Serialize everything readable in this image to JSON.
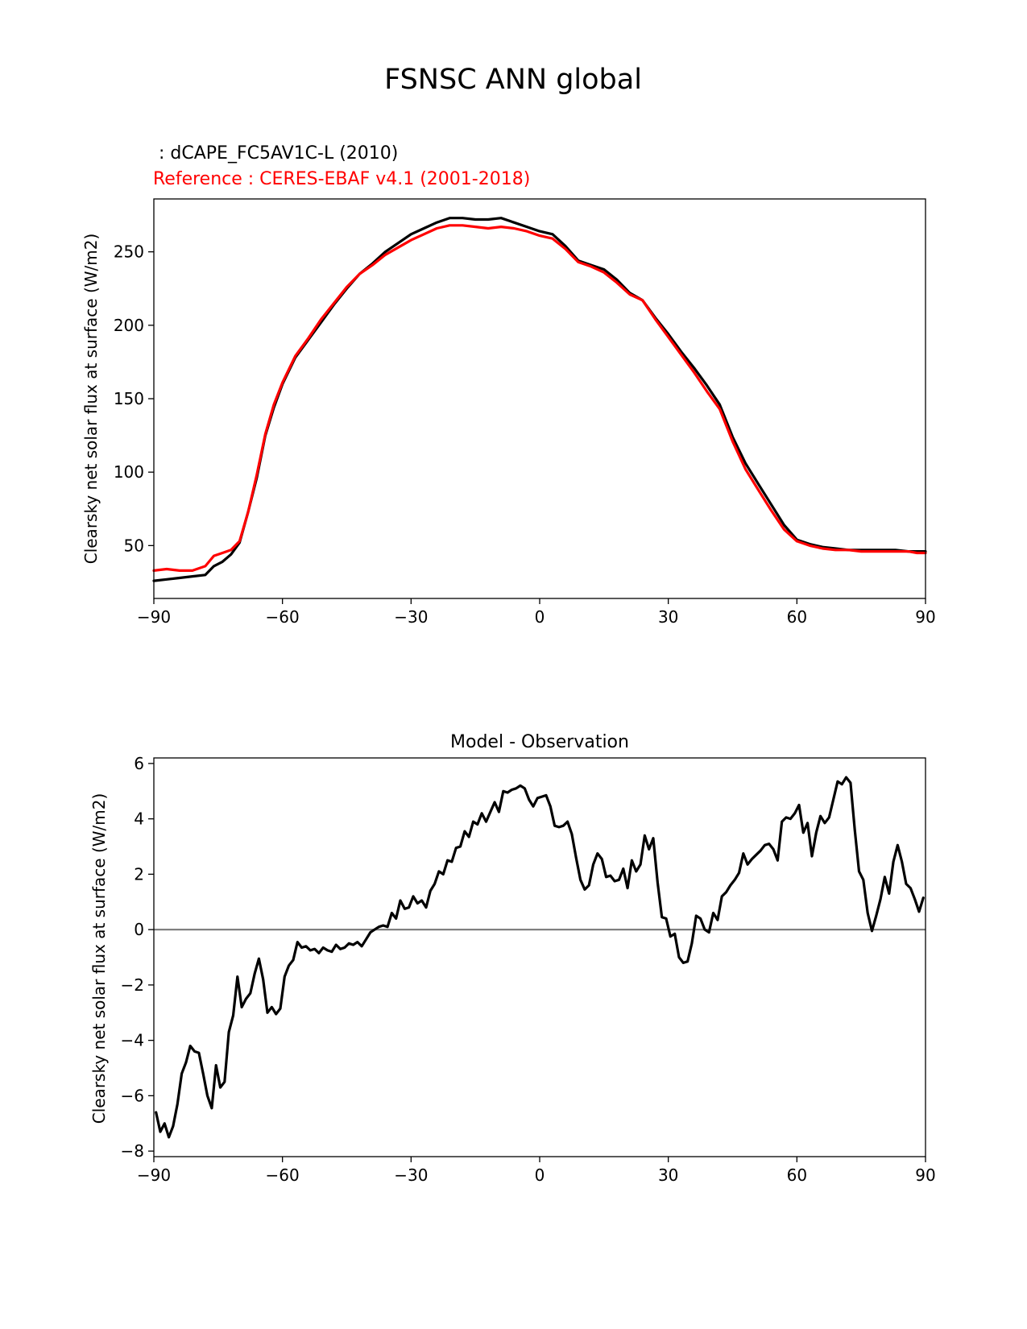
{
  "figure": {
    "title": "FSNSC ANN global"
  },
  "chart_data": [
    {
      "type": "line",
      "title": "",
      "legend_placement": "top-left",
      "test_label": " : dCAPE_FC5AV1C-L (2010)",
      "reference_label": "Reference : CERES-EBAF v4.1 (2001-2018)",
      "xlabel": "",
      "ylabel": "Clearsky net solar flux at surface (W/m2)",
      "xlim": [
        -90,
        90
      ],
      "ylim": [
        14,
        286
      ],
      "xticks": [
        -90,
        -60,
        -30,
        0,
        30,
        60,
        90
      ],
      "xtick_labels": [
        "−90",
        "−60",
        "−30",
        "0",
        "30",
        "60",
        "90"
      ],
      "yticks": [
        50,
        100,
        150,
        200,
        250
      ],
      "ytick_labels": [
        "50",
        "100",
        "150",
        "200",
        "250"
      ],
      "grid": false,
      "series": [
        {
          "color": "#000000",
          "x": [
            -90,
            -87,
            -84,
            -81,
            -78,
            -76,
            -74,
            -72,
            -70,
            -68,
            -66,
            -64,
            -62,
            -60,
            -57,
            -54,
            -51,
            -48,
            -45,
            -42,
            -39,
            -36,
            -33,
            -30,
            -27,
            -24,
            -21,
            -18,
            -15,
            -12,
            -9,
            -6,
            -3,
            0,
            3,
            6,
            9,
            12,
            15,
            18,
            21,
            24,
            27,
            30,
            33,
            36,
            39,
            42,
            45,
            48,
            51,
            54,
            57,
            60,
            63,
            66,
            69,
            72,
            75,
            78,
            80,
            83,
            86,
            88,
            90
          ],
          "y": [
            26,
            27,
            28,
            29,
            30,
            36,
            39,
            44,
            52,
            73,
            96,
            125,
            144,
            160,
            178,
            190,
            202,
            214,
            225,
            235,
            242,
            250,
            256,
            262,
            266,
            270,
            273,
            273,
            272,
            272,
            273,
            270,
            267,
            264,
            262,
            254,
            244,
            241,
            238,
            231,
            222,
            217,
            205,
            194,
            182,
            171,
            159,
            146,
            124,
            106,
            92,
            78,
            64,
            54,
            51,
            49,
            48,
            47,
            47,
            47,
            47,
            47,
            46,
            46,
            46
          ]
        },
        {
          "color": "#ff0000",
          "x": [
            -90,
            -87,
            -84,
            -81,
            -78,
            -76,
            -74,
            -72,
            -70,
            -68,
            -66,
            -64,
            -62,
            -60,
            -57,
            -54,
            -51,
            -48,
            -45,
            -42,
            -39,
            -36,
            -33,
            -30,
            -27,
            -24,
            -21,
            -18,
            -15,
            -12,
            -9,
            -6,
            -3,
            0,
            3,
            6,
            9,
            12,
            15,
            18,
            21,
            24,
            27,
            30,
            33,
            36,
            39,
            42,
            45,
            48,
            51,
            54,
            57,
            60,
            63,
            66,
            69,
            72,
            75,
            78,
            80,
            83,
            86,
            88,
            90
          ],
          "y": [
            33,
            34,
            33,
            33,
            36,
            43,
            45,
            47,
            53,
            73,
            98,
            126,
            146,
            161,
            179,
            191,
            204,
            215,
            226,
            235,
            241,
            248,
            253,
            258,
            262,
            266,
            268,
            268,
            267,
            266,
            267,
            266,
            264,
            261,
            259,
            252,
            243,
            240,
            236,
            229,
            221,
            217,
            204,
            192,
            180,
            168,
            155,
            143,
            121,
            102,
            88,
            74,
            61,
            53,
            50,
            48,
            47,
            47,
            46,
            46,
            46,
            46,
            46,
            45,
            45
          ]
        }
      ]
    },
    {
      "type": "line",
      "title": "Model - Observation",
      "xlabel": "",
      "ylabel": "Clearsky net solar flux at surface (W/m2)",
      "xlim": [
        -90,
        90
      ],
      "ylim": [
        -8.2,
        6.2
      ],
      "xticks": [
        -90,
        -60,
        -30,
        0,
        30,
        60,
        90
      ],
      "xtick_labels": [
        "−90",
        "−60",
        "−30",
        "0",
        "30",
        "60",
        "90"
      ],
      "yticks": [
        -8,
        -6,
        -4,
        -2,
        0,
        2,
        4,
        6
      ],
      "ytick_labels": [
        "−8",
        "−6",
        "−4",
        "−2",
        "0",
        "2",
        "4",
        "6"
      ],
      "grid": false,
      "zero_line_color": "#808080",
      "series": [
        {
          "color": "#000000",
          "x": [
            -89.5,
            -88.5,
            -87.5,
            -86.5,
            -85.5,
            -84.5,
            -83.5,
            -82.5,
            -81.5,
            -80.5,
            -79.5,
            -78.5,
            -77.5,
            -76.5,
            -75.5,
            -74.5,
            -73.5,
            -72.5,
            -71.5,
            -70.5,
            -69.5,
            -68.5,
            -67.5,
            -66.5,
            -65.5,
            -64.5,
            -63.5,
            -62.5,
            -61.5,
            -60.5,
            -59.5,
            -58.5,
            -57.5,
            -56.5,
            -55.5,
            -54.5,
            -53.5,
            -52.5,
            -51.5,
            -50.5,
            -49.5,
            -48.5,
            -47.5,
            -46.5,
            -45.5,
            -44.5,
            -43.5,
            -42.5,
            -41.5,
            -40.5,
            -39.5,
            -38.5,
            -37.5,
            -36.5,
            -35.5,
            -34.5,
            -33.5,
            -32.5,
            -31.5,
            -30.5,
            -29.5,
            -28.5,
            -27.5,
            -26.5,
            -25.5,
            -24.5,
            -23.5,
            -22.5,
            -21.5,
            -20.5,
            -19.5,
            -18.5,
            -17.5,
            -16.5,
            -15.5,
            -14.5,
            -13.5,
            -12.5,
            -11.5,
            -10.5,
            -9.5,
            -8.5,
            -7.5,
            -6.5,
            -5.5,
            -4.5,
            -3.5,
            -2.5,
            -1.5,
            -0.5,
            0.5,
            1.5,
            2.5,
            3.5,
            4.5,
            5.5,
            6.5,
            7.5,
            8.5,
            9.5,
            10.5,
            11.5,
            12.5,
            13.5,
            14.5,
            15.5,
            16.5,
            17.5,
            18.5,
            19.5,
            20.5,
            21.5,
            22.5,
            23.5,
            24.5,
            25.5,
            26.5,
            27.5,
            28.5,
            29.5,
            30.5,
            31.5,
            32.5,
            33.5,
            34.5,
            35.5,
            36.5,
            37.5,
            38.5,
            39.5,
            40.5,
            41.5,
            42.5,
            43.5,
            44.5,
            45.5,
            46.5,
            47.5,
            48.5,
            49.5,
            50.5,
            51.5,
            52.5,
            53.5,
            54.5,
            55.5,
            56.5,
            57.5,
            58.5,
            59.5,
            60.5,
            61.5,
            62.5,
            63.5,
            64.5,
            65.5,
            66.5,
            67.5,
            68.5,
            69.5,
            70.5,
            71.5,
            72.5,
            73.5,
            74.5,
            75.5,
            76.5,
            77.5,
            78.5,
            79.5,
            80.5,
            81.5,
            82.5,
            83.5,
            84.5,
            85.5,
            86.5,
            87.5,
            88.5,
            89.5
          ],
          "y": [
            -6.6,
            -7.3,
            -7.0,
            -7.5,
            -7.1,
            -6.3,
            -5.2,
            -4.8,
            -4.2,
            -4.4,
            -4.45,
            -5.2,
            -6.0,
            -6.45,
            -4.9,
            -5.7,
            -5.5,
            -3.7,
            -3.1,
            -1.7,
            -2.8,
            -2.5,
            -2.3,
            -1.6,
            -1.05,
            -1.8,
            -3.0,
            -2.8,
            -3.05,
            -2.85,
            -1.7,
            -1.3,
            -1.1,
            -0.45,
            -0.65,
            -0.6,
            -0.75,
            -0.7,
            -0.85,
            -0.65,
            -0.75,
            -0.8,
            -0.55,
            -0.7,
            -0.65,
            -0.5,
            -0.55,
            -0.45,
            -0.6,
            -0.35,
            -0.1,
            0.0,
            0.1,
            0.15,
            0.1,
            0.6,
            0.4,
            1.05,
            0.75,
            0.8,
            1.2,
            0.95,
            1.05,
            0.8,
            1.4,
            1.65,
            2.1,
            2.0,
            2.5,
            2.45,
            2.95,
            3.0,
            3.55,
            3.35,
            3.9,
            3.8,
            4.2,
            3.9,
            4.25,
            4.6,
            4.25,
            5.0,
            4.95,
            5.05,
            5.1,
            5.2,
            5.1,
            4.7,
            4.45,
            4.75,
            4.8,
            4.85,
            4.45,
            3.75,
            3.7,
            3.75,
            3.9,
            3.45,
            2.6,
            1.8,
            1.45,
            1.6,
            2.35,
            2.75,
            2.55,
            1.9,
            1.95,
            1.75,
            1.8,
            2.2,
            1.5,
            2.5,
            2.1,
            2.35,
            3.4,
            2.9,
            3.3,
            1.7,
            0.45,
            0.4,
            -0.25,
            -0.15,
            -1.0,
            -1.2,
            -1.15,
            -0.5,
            0.5,
            0.4,
            0.0,
            -0.1,
            0.6,
            0.35,
            1.2,
            1.35,
            1.6,
            1.8,
            2.05,
            2.75,
            2.35,
            2.55,
            2.7,
            2.85,
            3.05,
            3.1,
            2.9,
            2.5,
            3.9,
            4.05,
            4.0,
            4.2,
            4.5,
            3.5,
            3.85,
            2.65,
            3.5,
            4.1,
            3.85,
            4.05,
            4.7,
            5.35,
            5.25,
            5.5,
            5.3,
            3.6,
            2.1,
            1.8,
            0.6,
            -0.05,
            0.5,
            1.1,
            1.9,
            1.3,
            2.45,
            3.05,
            2.45,
            1.65,
            1.5,
            1.1,
            0.65,
            1.15
          ]
        }
      ]
    }
  ]
}
